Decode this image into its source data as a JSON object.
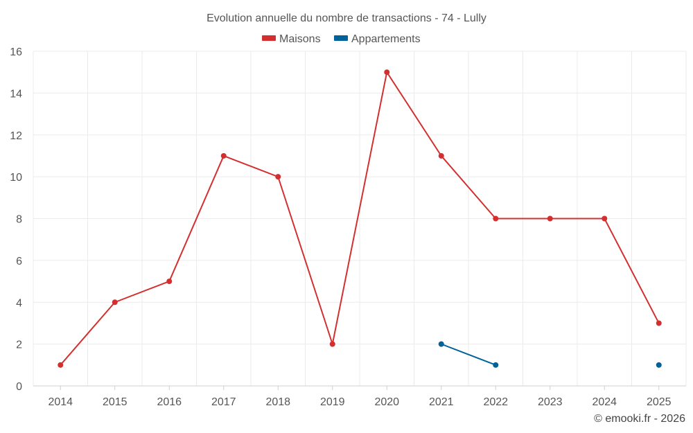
{
  "chart_data": {
    "type": "line",
    "title": "Evolution annuelle du nombre de transactions - 74 - Lully",
    "categories": [
      "2014",
      "2015",
      "2016",
      "2017",
      "2018",
      "2019",
      "2020",
      "2021",
      "2022",
      "2023",
      "2024",
      "2025"
    ],
    "series": [
      {
        "name": "Maisons",
        "color": "#d32f2f",
        "values": [
          1,
          4,
          5,
          11,
          10,
          2,
          15,
          11,
          8,
          8,
          8,
          3
        ]
      },
      {
        "name": "Appartements",
        "color": "#00629b",
        "values": [
          null,
          null,
          null,
          null,
          null,
          null,
          null,
          2,
          1,
          null,
          null,
          1
        ]
      }
    ],
    "ylim": [
      0,
      16
    ],
    "yticks": [
      0,
      2,
      4,
      6,
      8,
      10,
      12,
      14,
      16
    ],
    "xlabel": "",
    "ylabel": "",
    "grid": true,
    "legend": "top-center",
    "credit": "© emooki.fr - 2026"
  }
}
